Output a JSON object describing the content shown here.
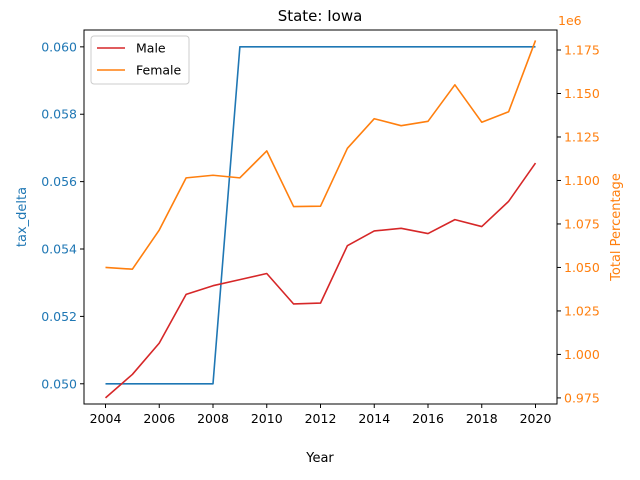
{
  "chart_data": {
    "type": "line",
    "title": "State: Iowa",
    "xlabel": "Year",
    "ylabel_left": "tax_delta",
    "ylabel_right": "Total Percentage",
    "right_offset_label": "1e6",
    "x": [
      2004,
      2005,
      2006,
      2007,
      2008,
      2009,
      2010,
      2011,
      2012,
      2013,
      2014,
      2015,
      2016,
      2017,
      2018,
      2019,
      2020
    ],
    "xlim": [
      2003.2,
      2020.8
    ],
    "xticks": [
      2004,
      2006,
      2008,
      2010,
      2012,
      2014,
      2016,
      2018,
      2020
    ],
    "ylim_left": [
      0.0494,
      0.0605
    ],
    "yticks_left": [
      0.05,
      0.052,
      0.054,
      0.056,
      0.058,
      0.06
    ],
    "ylim_right": [
      0.9715,
      1.1865
    ],
    "yticks_right": [
      0.975,
      1.0,
      1.025,
      1.05,
      1.075,
      1.1,
      1.125,
      1.15,
      1.175
    ],
    "left_series": {
      "values": [
        0.05,
        0.05,
        0.05,
        0.05,
        0.05,
        0.06,
        0.06,
        0.06,
        0.06,
        0.06,
        0.06,
        0.06,
        0.06,
        0.06,
        0.06,
        0.06,
        0.06
      ],
      "color": "#1f77b4"
    },
    "series": [
      {
        "name": "Male",
        "color": "#d62728",
        "values": [
          0.975,
          0.9885,
          1.0065,
          1.0345,
          1.0395,
          1.043,
          1.0465,
          1.029,
          1.0295,
          1.0625,
          1.071,
          1.0725,
          1.0695,
          1.0775,
          1.0735,
          1.088,
          1.11
        ]
      },
      {
        "name": "Female",
        "color": "#ff7f0e",
        "values": [
          1.05,
          1.049,
          1.0715,
          1.1015,
          1.103,
          1.1015,
          1.117,
          1.085,
          1.0852,
          1.1185,
          1.1355,
          1.1315,
          1.134,
          1.155,
          1.1335,
          1.1395,
          1.1805
        ]
      }
    ],
    "legend_position": "top-left",
    "grid": false
  }
}
